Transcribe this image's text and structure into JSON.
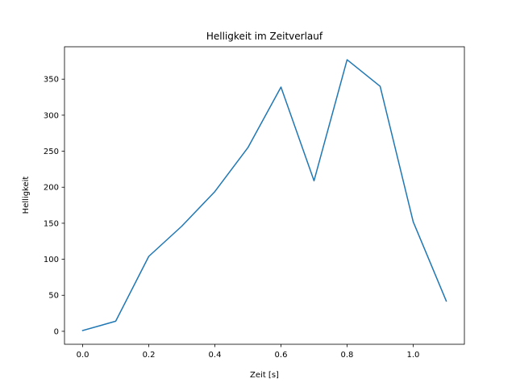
{
  "chart_data": {
    "type": "line",
    "title": "Helligkeit im Zeitverlauf",
    "xlabel": "Zeit [s]",
    "ylabel": "Helligkeit",
    "xlim": [
      -0.055,
      1.155
    ],
    "ylim": [
      -18,
      395
    ],
    "xticks": [
      0.0,
      0.2,
      0.4,
      0.6,
      0.8,
      1.0
    ],
    "xtick_labels": [
      "0.0",
      "0.2",
      "0.4",
      "0.6",
      "0.8",
      "1.0"
    ],
    "yticks": [
      0,
      50,
      100,
      150,
      200,
      250,
      300,
      350
    ],
    "ytick_labels": [
      "0",
      "50",
      "100",
      "150",
      "200",
      "250",
      "300",
      "350"
    ],
    "grid": false,
    "series": [
      {
        "name": "Helligkeit",
        "color": "#1f77b4",
        "x": [
          0.0,
          0.1,
          0.2,
          0.3,
          0.4,
          0.5,
          0.6,
          0.7,
          0.8,
          0.9,
          1.0,
          1.1
        ],
        "y": [
          1,
          14,
          104,
          146,
          194,
          255,
          339,
          209,
          377,
          340,
          152,
          42
        ]
      }
    ]
  }
}
